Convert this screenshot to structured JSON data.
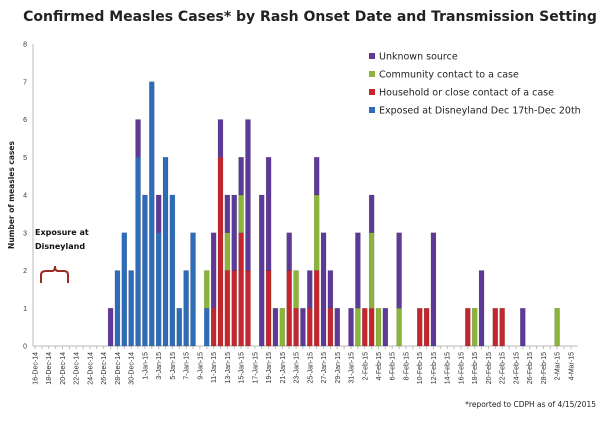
{
  "chart_data": {
    "type": "bar",
    "stacked": true,
    "title": "Confirmed Measles Cases* by Rash Onset Date and Transmission Setting",
    "ylabel": "Number of measles cases",
    "xlabel": "",
    "ylim": [
      0,
      8
    ],
    "yticks": [
      0,
      1,
      2,
      3,
      4,
      5,
      6,
      7,
      8
    ],
    "grid": false,
    "legend_position": "top-right",
    "categories": [
      "16-Dec-14",
      "17-Dec-14",
      "18-Dec-14",
      "19-Dec-14",
      "20-Dec-14",
      "21-Dec-14",
      "22-Dec-14",
      "23-Dec-14",
      "24-Dec-14",
      "25-Dec-14",
      "26-Dec-14",
      "27-Dec-14",
      "28-Dec-14",
      "29-Dec-14",
      "30-Dec-14",
      "31-Dec-14",
      "1-Jan-15",
      "2-Jan-15",
      "3-Jan-15",
      "4-Jan-15",
      "5-Jan-15",
      "6-Jan-15",
      "7-Jan-15",
      "8-Jan-15",
      "9-Jan-15",
      "10-Jan-15",
      "11-Jan-15",
      "12-Jan-15",
      "13-Jan-15",
      "14-Jan-15",
      "15-Jan-15",
      "16-Jan-15",
      "17-Jan-15",
      "18-Jan-15",
      "19-Jan-15",
      "20-Jan-15",
      "21-Jan-15",
      "22-Jan-15",
      "23-Jan-15",
      "24-Jan-15",
      "25-Jan-15",
      "26-Jan-15",
      "27-Jan-15",
      "28-Jan-15",
      "29-Jan-15",
      "30-Jan-15",
      "31-Jan-15",
      "1-Feb-15",
      "2-Feb-15",
      "3-Feb-15",
      "4-Feb-15",
      "5-Feb-15",
      "6-Feb-15",
      "7-Feb-15",
      "8-Feb-15",
      "9-Feb-15",
      "10-Feb-15",
      "11-Feb-15",
      "12-Feb-15",
      "13-Feb-15",
      "14-Feb-15",
      "15-Feb-15",
      "16-Feb-15",
      "17-Feb-15",
      "18-Feb-15",
      "19-Feb-15",
      "20-Feb-15",
      "21-Feb-15",
      "22-Feb-15",
      "23-Feb-15",
      "24-Feb-15",
      "25-Feb-15",
      "26-Feb-15",
      "27-Feb-15",
      "28-Feb-15",
      "1-Mar-15",
      "2-Mar-15",
      "3-Mar-15",
      "4-Mar-15"
    ],
    "tick_label_every": 2,
    "series": [
      {
        "name": "Exposed at Disneyland Dec 17th-Dec 20th",
        "color": "#2e6bb8",
        "values": [
          0,
          0,
          0,
          0,
          0,
          0,
          0,
          0,
          0,
          0,
          0,
          0,
          2,
          3,
          2,
          5,
          4,
          7,
          3,
          5,
          4,
          1,
          2,
          3,
          0,
          1,
          0,
          0,
          0,
          0,
          0,
          0,
          0,
          0,
          0,
          0,
          0,
          0,
          0,
          0,
          0,
          0,
          0,
          0,
          0,
          0,
          0,
          0,
          0,
          0,
          0,
          0,
          0,
          0,
          0,
          0,
          0,
          0,
          0,
          0,
          0,
          0,
          0,
          0,
          0,
          0,
          0,
          0,
          0,
          0,
          0,
          0,
          0,
          0,
          0,
          0,
          0,
          0,
          0
        ]
      },
      {
        "name": "Household or close contact of a case",
        "color": "#c3262c",
        "values": [
          0,
          0,
          0,
          0,
          0,
          0,
          0,
          0,
          0,
          0,
          0,
          0,
          0,
          0,
          0,
          0,
          0,
          0,
          0,
          0,
          0,
          0,
          0,
          0,
          0,
          0,
          1,
          5,
          2,
          2,
          3,
          2,
          0,
          0,
          2,
          0,
          0,
          2,
          1,
          0,
          1,
          2,
          0,
          1,
          0,
          0,
          0,
          0,
          1,
          1,
          0,
          0,
          0,
          0,
          0,
          0,
          1,
          1,
          0,
          0,
          0,
          0,
          0,
          1,
          0,
          0,
          0,
          1,
          1,
          0,
          0,
          0,
          0,
          0,
          0,
          0,
          0,
          0,
          0
        ]
      },
      {
        "name": "Community contact to a case",
        "color": "#8cb43a",
        "values": [
          0,
          0,
          0,
          0,
          0,
          0,
          0,
          0,
          0,
          0,
          0,
          0,
          0,
          0,
          0,
          0,
          0,
          0,
          0,
          0,
          0,
          0,
          0,
          0,
          0,
          1,
          0,
          0,
          1,
          0,
          1,
          0,
          0,
          0,
          0,
          0,
          1,
          0,
          1,
          0,
          0,
          2,
          0,
          0,
          0,
          0,
          0,
          1,
          0,
          2,
          1,
          0,
          0,
          1,
          0,
          0,
          0,
          0,
          0,
          0,
          0,
          0,
          0,
          0,
          1,
          0,
          0,
          0,
          0,
          0,
          0,
          0,
          0,
          0,
          0,
          0,
          1,
          0,
          0
        ]
      },
      {
        "name": "Unknown source",
        "color": "#5e3a98",
        "values": [
          0,
          0,
          0,
          0,
          0,
          0,
          0,
          0,
          0,
          0,
          0,
          1,
          0,
          0,
          0,
          1,
          0,
          0,
          1,
          0,
          0,
          0,
          0,
          0,
          0,
          0,
          2,
          1,
          1,
          2,
          1,
          4,
          0,
          4,
          3,
          1,
          0,
          1,
          0,
          1,
          1,
          1,
          3,
          1,
          1,
          0,
          1,
          2,
          0,
          1,
          0,
          1,
          0,
          2,
          0,
          0,
          0,
          0,
          3,
          0,
          0,
          0,
          0,
          0,
          0,
          2,
          0,
          0,
          0,
          0,
          0,
          1,
          0,
          0,
          0,
          0,
          0,
          0,
          0
        ]
      }
    ],
    "legend_order": [
      "Unknown source",
      "Community contact to a case",
      "Household or close contact of a case",
      "Exposed at Disneyland Dec 17th-Dec 20th"
    ],
    "annotation": {
      "line1": "Exposure at",
      "line2": "Disneyland",
      "brace_color": "#9b2a22"
    },
    "footnote": "*reported to CDPH as of 4/15/2015"
  }
}
